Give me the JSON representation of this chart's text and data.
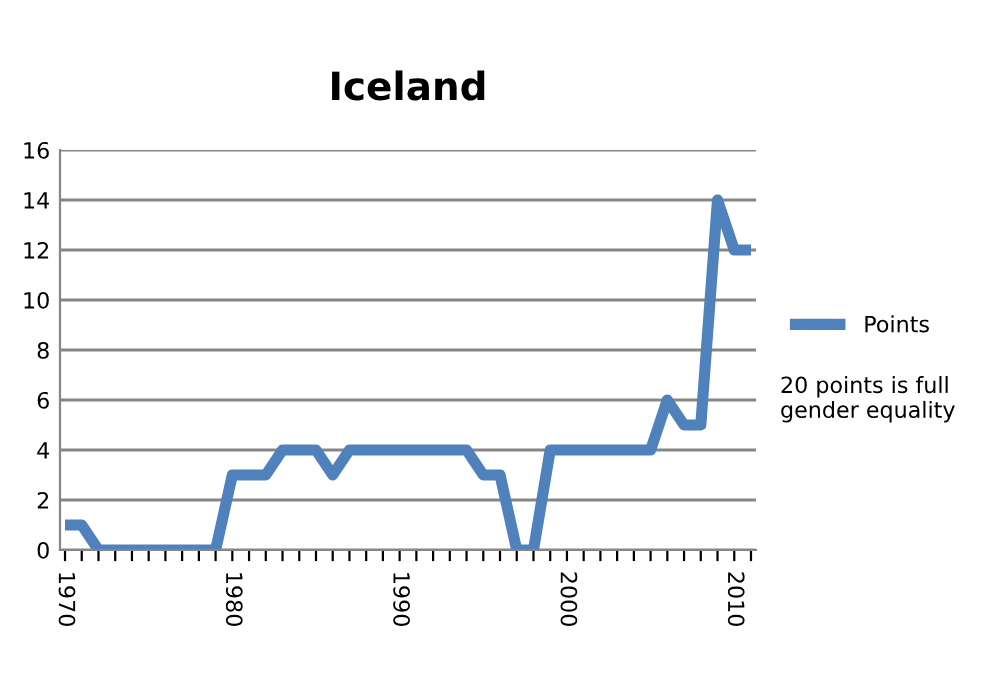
{
  "chart_data": {
    "type": "line",
    "title": "Iceland",
    "categories": [
      "1970",
      null,
      null,
      null,
      null,
      null,
      null,
      null,
      null,
      null,
      "1980",
      null,
      null,
      null,
      null,
      null,
      null,
      null,
      null,
      null,
      "1990",
      null,
      null,
      null,
      null,
      null,
      null,
      null,
      null,
      null,
      "2000",
      null,
      null,
      null,
      null,
      null,
      null,
      null,
      null,
      null,
      "2010",
      null
    ],
    "series": [
      {
        "name": "Points",
        "color": "#4f81bd",
        "values": [
          1,
          1,
          0,
          0,
          0,
          0,
          0,
          0,
          0,
          0,
          3,
          3,
          3,
          4,
          4,
          4,
          3,
          4,
          4,
          4,
          4,
          4,
          4,
          4,
          4,
          3,
          3,
          0,
          0,
          4,
          4,
          4,
          4,
          4,
          4,
          4,
          6,
          5,
          5,
          14,
          12,
          12
        ]
      }
    ],
    "ylim": [
      0,
      16
    ],
    "yticks": [
      0,
      2,
      4,
      6,
      8,
      10,
      12,
      14,
      16
    ],
    "grid": "y",
    "legend": "right",
    "marker": "none",
    "line_style": "solid",
    "annotations": [
      "20 points is full gender equality"
    ]
  }
}
